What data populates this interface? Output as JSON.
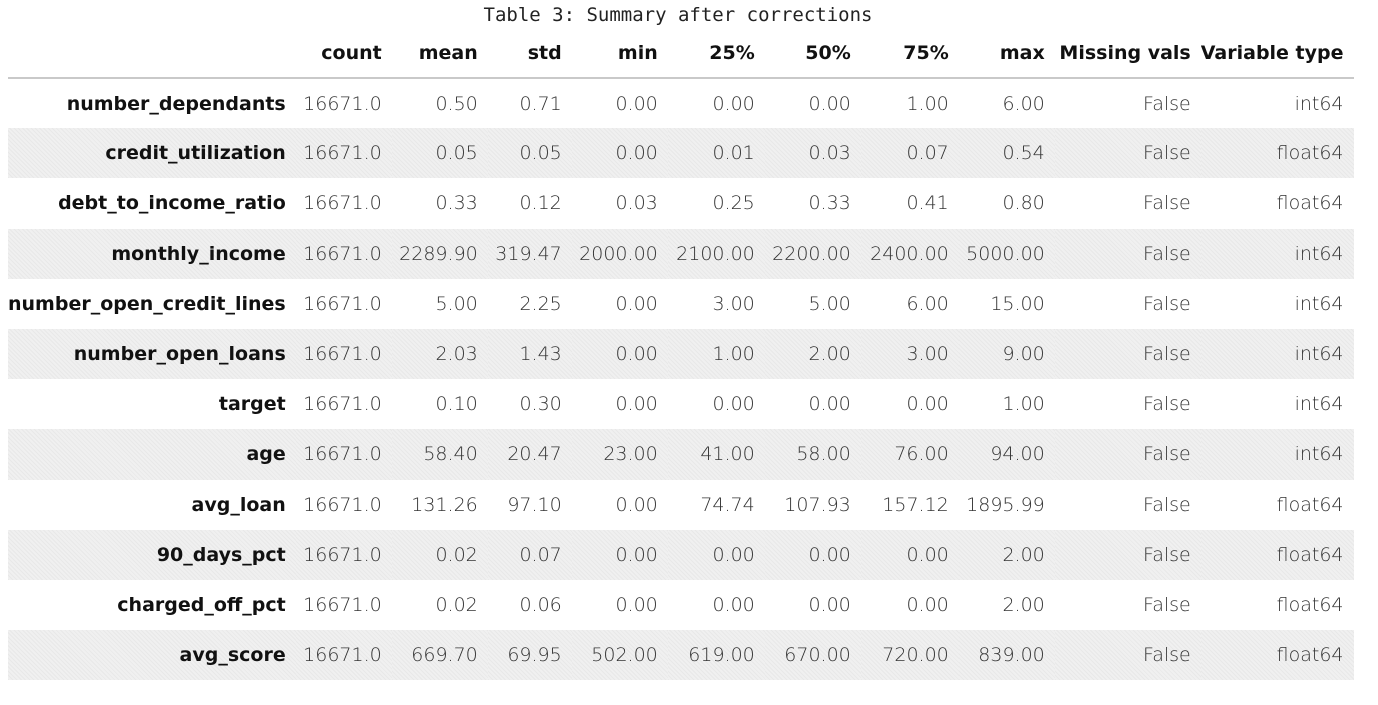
{
  "caption": "Table 3: Summary after corrections",
  "table": {
    "columns": [
      "count",
      "mean",
      "std",
      "min",
      "25%",
      "50%",
      "75%",
      "max",
      "Missing vals",
      "Variable type"
    ],
    "rows": [
      {
        "name": "number_dependants",
        "values": [
          "16671.0",
          "0.50",
          "0.71",
          "0.00",
          "0.00",
          "0.00",
          "1.00",
          "6.00",
          "False",
          "int64"
        ]
      },
      {
        "name": "credit_utilization",
        "values": [
          "16671.0",
          "0.05",
          "0.05",
          "0.00",
          "0.01",
          "0.03",
          "0.07",
          "0.54",
          "False",
          "float64"
        ]
      },
      {
        "name": "debt_to_income_ratio",
        "values": [
          "16671.0",
          "0.33",
          "0.12",
          "0.03",
          "0.25",
          "0.33",
          "0.41",
          "0.80",
          "False",
          "float64"
        ]
      },
      {
        "name": "monthly_income",
        "values": [
          "16671.0",
          "2289.90",
          "319.47",
          "2000.00",
          "2100.00",
          "2200.00",
          "2400.00",
          "5000.00",
          "False",
          "int64"
        ]
      },
      {
        "name": "number_open_credit_lines",
        "values": [
          "16671.0",
          "5.00",
          "2.25",
          "0.00",
          "3.00",
          "5.00",
          "6.00",
          "15.00",
          "False",
          "int64"
        ]
      },
      {
        "name": "number_open_loans",
        "values": [
          "16671.0",
          "2.03",
          "1.43",
          "0.00",
          "1.00",
          "2.00",
          "3.00",
          "9.00",
          "False",
          "int64"
        ]
      },
      {
        "name": "target",
        "values": [
          "16671.0",
          "0.10",
          "0.30",
          "0.00",
          "0.00",
          "0.00",
          "0.00",
          "1.00",
          "False",
          "int64"
        ]
      },
      {
        "name": "age",
        "values": [
          "16671.0",
          "58.40",
          "20.47",
          "23.00",
          "41.00",
          "58.00",
          "76.00",
          "94.00",
          "False",
          "int64"
        ]
      },
      {
        "name": "avg_loan",
        "values": [
          "16671.0",
          "131.26",
          "97.10",
          "0.00",
          "74.74",
          "107.93",
          "157.12",
          "1895.99",
          "False",
          "float64"
        ]
      },
      {
        "name": "90_days_pct",
        "values": [
          "16671.0",
          "0.02",
          "0.07",
          "0.00",
          "0.00",
          "0.00",
          "0.00",
          "2.00",
          "False",
          "float64"
        ]
      },
      {
        "name": "charged_off_pct",
        "values": [
          "16671.0",
          "0.02",
          "0.06",
          "0.00",
          "0.00",
          "0.00",
          "0.00",
          "2.00",
          "False",
          "float64"
        ]
      },
      {
        "name": "avg_score",
        "values": [
          "16671.0",
          "669.70",
          "69.95",
          "502.00",
          "619.00",
          "670.00",
          "720.00",
          "839.00",
          "False",
          "float64"
        ]
      }
    ]
  }
}
